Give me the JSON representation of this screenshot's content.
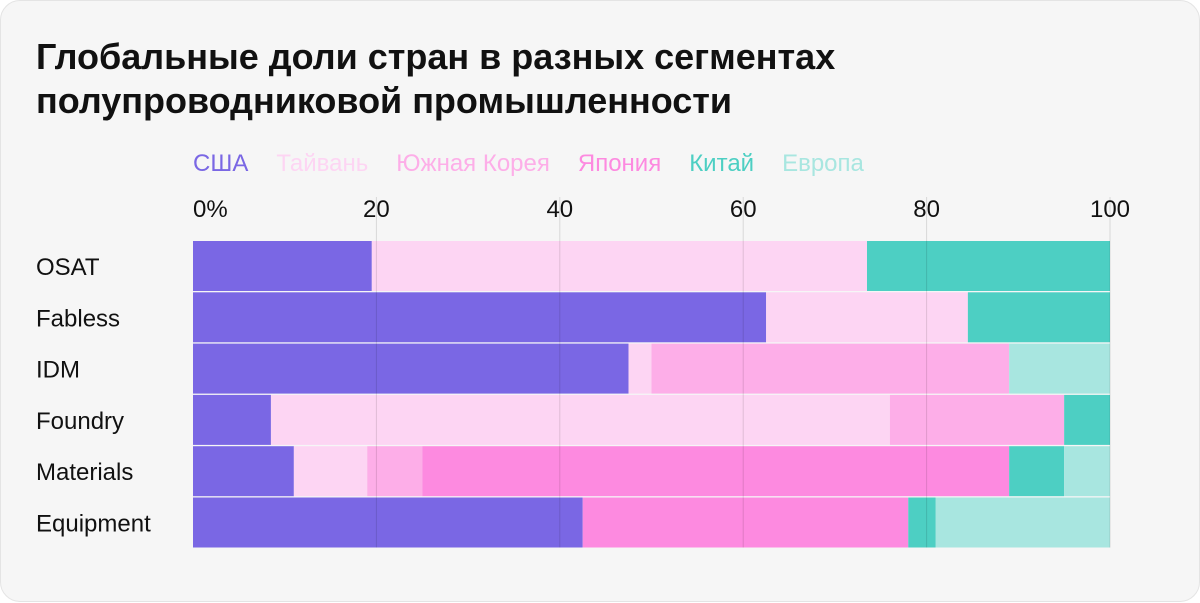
{
  "title_line1": "Глобальные доли стран в разных сегментах",
  "title_line2": "полупроводниковой промышленности",
  "chart_data": {
    "type": "bar",
    "orientation": "horizontal",
    "stacked": true,
    "title": "Глобальные доли стран в разных сегментах полупроводниковой промышленности",
    "xlabel": "",
    "ylabel": "",
    "xlim": [
      0,
      100
    ],
    "x_ticks": [
      "0%",
      "20",
      "40",
      "60",
      "80",
      "100"
    ],
    "grid": true,
    "legend_position": "top-left",
    "categories": [
      "OSAT",
      "Fabless",
      "IDM",
      "Foundry",
      "Materials",
      "Equipment"
    ],
    "series": [
      {
        "name": "США",
        "color": "#7a67e4",
        "values": [
          19.5,
          62.5,
          47.5,
          8.5,
          11,
          42.5
        ]
      },
      {
        "name": "Тайвань",
        "color": "#fdd5f3",
        "values": [
          54,
          22,
          2.5,
          67.5,
          8,
          0
        ]
      },
      {
        "name": "Южная Корея",
        "color": "#fdaee8",
        "values": [
          0,
          0,
          39,
          19,
          6,
          0
        ]
      },
      {
        "name": "Япония",
        "color": "#fd8ae0",
        "values": [
          0,
          0,
          0,
          0,
          64,
          35.5
        ]
      },
      {
        "name": "Китай",
        "color": "#4dcfc3",
        "values": [
          26.5,
          15.5,
          0,
          5,
          6,
          3
        ]
      },
      {
        "name": "Европа",
        "color": "#a8e6e0",
        "values": [
          0,
          0,
          11,
          0,
          5,
          19
        ]
      }
    ]
  }
}
